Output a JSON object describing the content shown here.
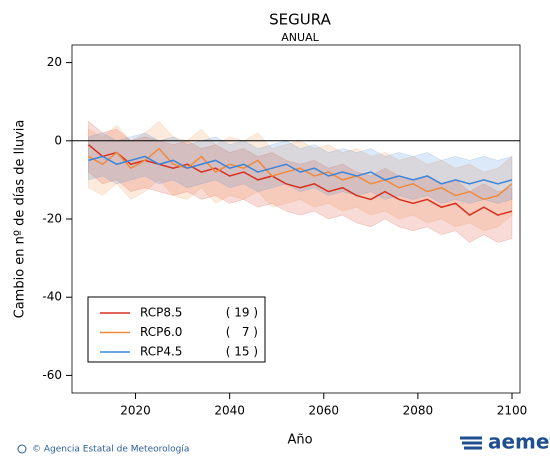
{
  "chart_data": {
    "type": "line",
    "title": "SEGURA",
    "subtitle": "ANUAL",
    "x_label": "Año",
    "y_label": "Cambio en nº de días de lluvia",
    "xlim": [
      2006.5,
      2101.7
    ],
    "ylim": [
      -64.5,
      24.5
    ],
    "xticks": [
      2020,
      2040,
      2060,
      2080,
      2100
    ],
    "yticks": [
      20,
      0,
      -20,
      -40,
      -60
    ],
    "hline": 0,
    "legend": "lower-left",
    "x": [
      2010,
      2013,
      2016,
      2019,
      2022,
      2025,
      2028,
      2031,
      2034,
      2037,
      2040,
      2043,
      2046,
      2049,
      2052,
      2055,
      2058,
      2061,
      2064,
      2067,
      2070,
      2073,
      2076,
      2079,
      2082,
      2085,
      2088,
      2091,
      2094,
      2097,
      2100
    ],
    "series": [
      {
        "name": "RCP8.5",
        "models": "( 19 )",
        "color": "#d7301f",
        "values": [
          -1,
          -4,
          -3,
          -6,
          -5,
          -6,
          -7,
          -6,
          -8,
          -7,
          -9,
          -8,
          -10,
          -9,
          -11,
          -12,
          -11,
          -13,
          -12,
          -14,
          -15,
          -13,
          -15,
          -16,
          -15,
          -17,
          -16,
          -19,
          -17,
          -19,
          -18
        ],
        "band_low": [
          -8,
          -11,
          -10,
          -13,
          -12,
          -13,
          -14,
          -13,
          -15,
          -14,
          -16,
          -15,
          -17,
          -16,
          -18,
          -19,
          -18,
          -20,
          -19,
          -21,
          -22,
          -20,
          -22,
          -23,
          -22,
          -24,
          -23,
          -26,
          -24,
          -26,
          -25
        ],
        "band_high": [
          5,
          2,
          3,
          0,
          1,
          0,
          -1,
          0,
          -2,
          -1,
          -3,
          -2,
          -4,
          -3,
          -5,
          -6,
          -5,
          -7,
          -6,
          -8,
          -9,
          -7,
          -9,
          -10,
          -9,
          -11,
          -10,
          -13,
          -11,
          -13,
          -12
        ]
      },
      {
        "name": "RCP6.0",
        "models": "(   7 )",
        "color": "#f08a3c",
        "values": [
          -4,
          -6,
          -3,
          -7,
          -5,
          -2,
          -6,
          -7,
          -4,
          -8,
          -6,
          -7,
          -5,
          -9,
          -8,
          -7,
          -9,
          -8,
          -10,
          -9,
          -11,
          -10,
          -12,
          -11,
          -13,
          -12,
          -14,
          -13,
          -15,
          -14,
          -11
        ],
        "band_low": [
          -12,
          -14,
          -11,
          -15,
          -13,
          -10,
          -14,
          -15,
          -12,
          -16,
          -14,
          -15,
          -13,
          -17,
          -16,
          -15,
          -17,
          -16,
          -18,
          -17,
          -19,
          -18,
          -20,
          -19,
          -21,
          -20,
          -22,
          -21,
          -23,
          -22,
          -19
        ],
        "band_high": [
          3,
          1,
          4,
          0,
          2,
          5,
          1,
          0,
          3,
          -1,
          1,
          0,
          2,
          -2,
          -1,
          0,
          -2,
          -1,
          -3,
          -2,
          -4,
          -3,
          -5,
          -4,
          -6,
          -5,
          -7,
          -6,
          -8,
          -7,
          -4
        ]
      },
      {
        "name": "RCP4.5",
        "models": "( 15 )",
        "color": "#3d85d8",
        "values": [
          -5,
          -4,
          -6,
          -5,
          -4,
          -6,
          -5,
          -7,
          -6,
          -5,
          -7,
          -6,
          -8,
          -7,
          -6,
          -8,
          -7,
          -9,
          -8,
          -9,
          -8,
          -10,
          -9,
          -10,
          -9,
          -11,
          -10,
          -11,
          -10,
          -11,
          -10
        ],
        "band_low": [
          -10,
          -9,
          -11,
          -10,
          -9,
          -11,
          -10,
          -12,
          -11,
          -10,
          -12,
          -11,
          -13,
          -12,
          -11,
          -13,
          -12,
          -14,
          -13,
          -14,
          -13,
          -15,
          -14,
          -15,
          -14,
          -16,
          -15,
          -16,
          -15,
          -16,
          -15
        ],
        "band_high": [
          1,
          2,
          0,
          1,
          2,
          0,
          1,
          -1,
          0,
          1,
          -1,
          0,
          -2,
          -1,
          0,
          -2,
          -1,
          -3,
          -2,
          -3,
          -2,
          -4,
          -3,
          -4,
          -3,
          -5,
          -4,
          -5,
          -4,
          -5,
          -4
        ]
      }
    ]
  },
  "footer": {
    "credit": "© Agencia Estatal de Meteorología",
    "logo": "aemet"
  }
}
